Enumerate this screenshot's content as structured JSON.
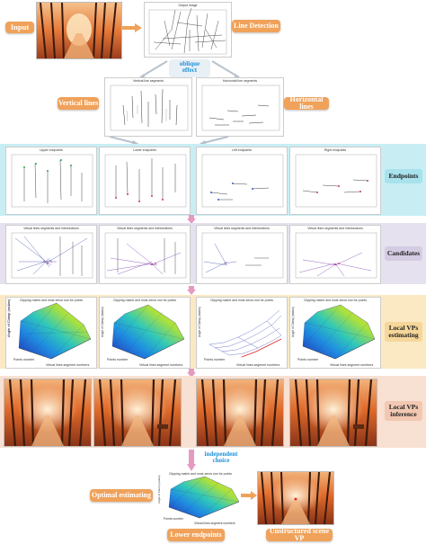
{
  "labels": {
    "input": "Input",
    "line_detection": "Line Detection",
    "oblique_effect": "oblique\neffect",
    "vertical_lines": "Vertical lines",
    "horizontal_lines": "Horizontal lines",
    "endpoints": "Endpoints",
    "candidates": "Candidates",
    "local_vps_estimating": "Local VPs\nestimating",
    "local_vps_inference": "Local VPs\ninference",
    "independent_choice": "independent\nchoice",
    "optimal_estimating": "Optimal estimating",
    "lower_endpoints": "Lower endpoints",
    "unstructured_scene_vp": "Unstructured scene VP"
  },
  "panel_titles": {
    "line_detection": "Output image",
    "vertical": "Vertical line segments",
    "horizontal": "Horizontal line segments",
    "endpoints": [
      "Upper endpoints",
      "Lower endpoints",
      "Left endpoints",
      "Right endpoints"
    ],
    "candidates": [
      "Virtual lines segments and Intersections",
      "Virtual lines segments and Intersections",
      "Virtual lines segments and Intersections",
      "Virtual lines segments and Intersections"
    ],
    "surfaces": [
      "Clipping matrix and most zeros row for points",
      "Clipping matrix and most zeros row for points",
      "Clipping matrix and most zeros row for points",
      "Clipping matrix and most zeros row for points"
    ],
    "final_surface": "Clipping matrix and most zeros row for points"
  },
  "surface_axes": {
    "z": "Angle of Clamp (radian)",
    "x": "Points number",
    "y": "Virtual lines segment numbers"
  },
  "colors": {
    "orange": "#f0a25a",
    "cyan_band": "#c8eef4",
    "lavender_band": "#e6e1ee",
    "yellow_band": "#fbe9c4",
    "peach_band": "#f8e0d2",
    "pink_arrow": "#e79ac0",
    "blue_text": "#1a8fd8"
  }
}
